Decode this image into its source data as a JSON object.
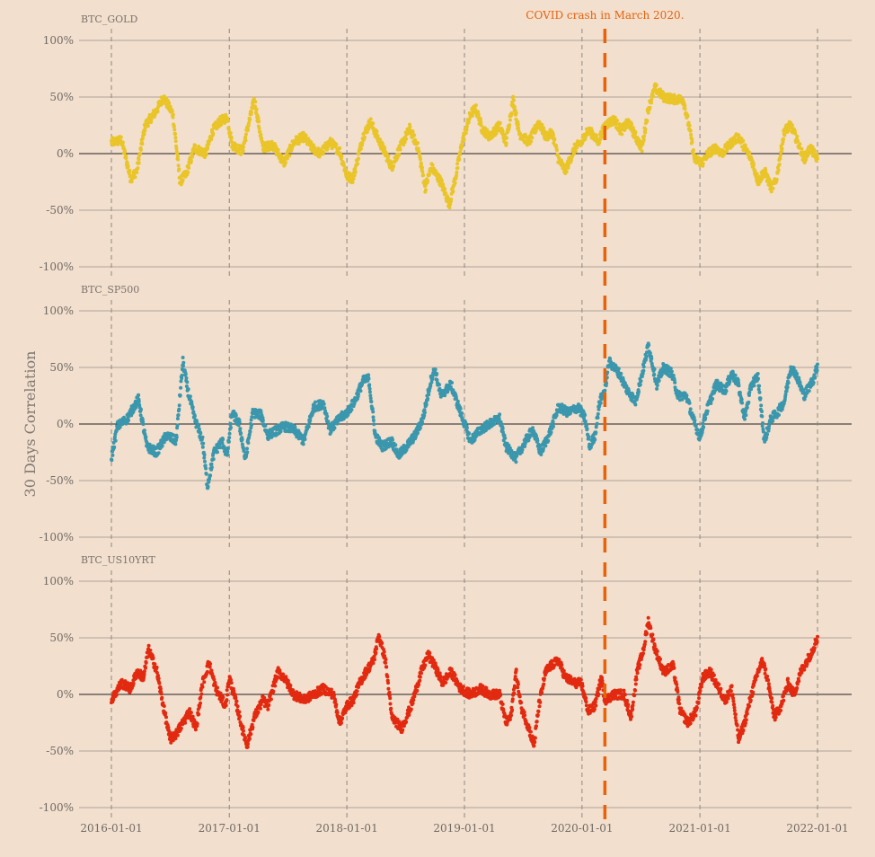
{
  "chart_data": {
    "type": "scatter",
    "ylabel": "30 Days Correlation",
    "yticks": [
      "100%",
      "50%",
      "0%",
      "-50%",
      "-100%"
    ],
    "ylim": [
      -100,
      100
    ],
    "x_range": [
      "2016-01-01",
      "2022-01-01"
    ],
    "xticks": [
      "2016-01-01",
      "2017-01-01",
      "2018-01-01",
      "2019-01-01",
      "2020-01-01",
      "2021-01-01",
      "2022-01-01"
    ],
    "grid": true,
    "annotation": {
      "text": "COVID crash in March 2020.",
      "date": "2020-03-12",
      "color": "#e8620c"
    },
    "panels": [
      {
        "title": "BTC_GOLD",
        "color": "#e9c52a",
        "anchors": [
          [
            "2016-01-01",
            10
          ],
          [
            "2016-02-01",
            12
          ],
          [
            "2016-03-01",
            -22
          ],
          [
            "2016-03-20",
            -15
          ],
          [
            "2016-04-15",
            25
          ],
          [
            "2016-05-20",
            38
          ],
          [
            "2016-06-10",
            50
          ],
          [
            "2016-07-10",
            35
          ],
          [
            "2016-08-01",
            -25
          ],
          [
            "2016-08-20",
            -18
          ],
          [
            "2016-09-15",
            5
          ],
          [
            "2016-10-20",
            0
          ],
          [
            "2016-11-10",
            20
          ],
          [
            "2016-12-01",
            28
          ],
          [
            "2016-12-25",
            32
          ],
          [
            "2017-01-10",
            8
          ],
          [
            "2017-02-10",
            2
          ],
          [
            "2017-03-01",
            25
          ],
          [
            "2017-03-20",
            48
          ],
          [
            "2017-04-15",
            5
          ],
          [
            "2017-05-15",
            8
          ],
          [
            "2017-06-20",
            -8
          ],
          [
            "2017-07-20",
            10
          ],
          [
            "2017-08-20",
            15
          ],
          [
            "2017-09-15",
            5
          ],
          [
            "2017-10-10",
            0
          ],
          [
            "2017-11-10",
            10
          ],
          [
            "2017-12-10",
            2
          ],
          [
            "2018-01-01",
            -20
          ],
          [
            "2018-01-20",
            -22
          ],
          [
            "2018-02-20",
            15
          ],
          [
            "2018-03-15",
            28
          ],
          [
            "2018-04-10",
            12
          ],
          [
            "2018-05-01",
            0
          ],
          [
            "2018-05-20",
            -12
          ],
          [
            "2018-06-15",
            5
          ],
          [
            "2018-07-15",
            22
          ],
          [
            "2018-08-10",
            5
          ],
          [
            "2018-09-01",
            -30
          ],
          [
            "2018-09-20",
            -12
          ],
          [
            "2018-10-20",
            -25
          ],
          [
            "2018-11-15",
            -45
          ],
          [
            "2018-12-05",
            -20
          ],
          [
            "2018-12-25",
            10
          ],
          [
            "2019-01-20",
            35
          ],
          [
            "2019-02-05",
            40
          ],
          [
            "2019-02-25",
            22
          ],
          [
            "2019-03-20",
            15
          ],
          [
            "2019-04-20",
            25
          ],
          [
            "2019-05-10",
            10
          ],
          [
            "2019-06-01",
            48
          ],
          [
            "2019-06-20",
            18
          ],
          [
            "2019-07-20",
            10
          ],
          [
            "2019-08-20",
            28
          ],
          [
            "2019-09-10",
            15
          ],
          [
            "2019-10-01",
            18
          ],
          [
            "2019-10-20",
            -5
          ],
          [
            "2019-11-10",
            -15
          ],
          [
            "2019-12-10",
            5
          ],
          [
            "2020-01-01",
            10
          ],
          [
            "2020-01-15",
            20
          ],
          [
            "2020-02-01",
            18
          ],
          [
            "2020-02-20",
            10
          ],
          [
            "2020-03-12",
            25
          ],
          [
            "2020-04-10",
            30
          ],
          [
            "2020-05-01",
            20
          ],
          [
            "2020-05-25",
            28
          ],
          [
            "2020-06-15",
            15
          ],
          [
            "2020-07-05",
            5
          ],
          [
            "2020-07-25",
            40
          ],
          [
            "2020-08-15",
            58
          ],
          [
            "2020-09-10",
            50
          ],
          [
            "2020-10-10",
            48
          ],
          [
            "2020-11-10",
            48
          ],
          [
            "2020-12-01",
            20
          ],
          [
            "2020-12-15",
            -5
          ],
          [
            "2021-01-10",
            -8
          ],
          [
            "2021-01-25",
            0
          ],
          [
            "2021-02-20",
            5
          ],
          [
            "2021-03-10",
            0
          ],
          [
            "2021-04-10",
            10
          ],
          [
            "2021-05-01",
            15
          ],
          [
            "2021-05-20",
            5
          ],
          [
            "2021-06-10",
            -5
          ],
          [
            "2021-07-01",
            -25
          ],
          [
            "2021-07-20",
            -15
          ],
          [
            "2021-08-10",
            -30
          ],
          [
            "2021-08-25",
            -25
          ],
          [
            "2021-09-20",
            20
          ],
          [
            "2021-10-10",
            25
          ],
          [
            "2021-11-01",
            10
          ],
          [
            "2021-11-20",
            -5
          ],
          [
            "2021-12-10",
            5
          ],
          [
            "2022-01-01",
            -5
          ]
        ]
      },
      {
        "title": "BTC_SP500",
        "color": "#3b97ad",
        "anchors": [
          [
            "2016-01-01",
            -30
          ],
          [
            "2016-01-20",
            -2
          ],
          [
            "2016-02-20",
            5
          ],
          [
            "2016-03-10",
            15
          ],
          [
            "2016-03-25",
            22
          ],
          [
            "2016-04-20",
            -20
          ],
          [
            "2016-05-20",
            -25
          ],
          [
            "2016-06-20",
            -10
          ],
          [
            "2016-07-20",
            -15
          ],
          [
            "2016-08-10",
            55
          ],
          [
            "2016-08-25",
            30
          ],
          [
            "2016-09-15",
            5
          ],
          [
            "2016-10-10",
            -15
          ],
          [
            "2016-10-25",
            -55
          ],
          [
            "2016-11-15",
            -25
          ],
          [
            "2016-12-10",
            -15
          ],
          [
            "2016-12-25",
            -28
          ],
          [
            "2017-01-10",
            10
          ],
          [
            "2017-02-01",
            0
          ],
          [
            "2017-02-20",
            -32
          ],
          [
            "2017-03-15",
            10
          ],
          [
            "2017-04-10",
            8
          ],
          [
            "2017-04-30",
            -10
          ],
          [
            "2017-06-20",
            -2
          ],
          [
            "2017-07-20",
            -5
          ],
          [
            "2017-08-20",
            -15
          ],
          [
            "2017-09-20",
            15
          ],
          [
            "2017-10-20",
            18
          ],
          [
            "2017-11-10",
            -5
          ],
          [
            "2017-12-10",
            5
          ],
          [
            "2018-01-01",
            10
          ],
          [
            "2018-01-25",
            20
          ],
          [
            "2018-02-20",
            38
          ],
          [
            "2018-03-10",
            40
          ],
          [
            "2018-03-30",
            -10
          ],
          [
            "2018-04-20",
            -20
          ],
          [
            "2018-05-20",
            -15
          ],
          [
            "2018-06-10",
            -28
          ],
          [
            "2018-07-05",
            -20
          ],
          [
            "2018-08-01",
            -10
          ],
          [
            "2018-08-25",
            5
          ],
          [
            "2018-09-20",
            40
          ],
          [
            "2018-10-01",
            48
          ],
          [
            "2018-10-20",
            25
          ],
          [
            "2018-11-20",
            35
          ],
          [
            "2018-12-20",
            10
          ],
          [
            "2019-01-20",
            -15
          ],
          [
            "2019-02-20",
            -5
          ],
          [
            "2019-03-20",
            0
          ],
          [
            "2019-04-20",
            5
          ],
          [
            "2019-05-10",
            -20
          ],
          [
            "2019-06-10",
            -30
          ],
          [
            "2019-07-10",
            -15
          ],
          [
            "2019-08-01",
            -5
          ],
          [
            "2019-08-25",
            -25
          ],
          [
            "2019-09-20",
            -10
          ],
          [
            "2019-10-20",
            15
          ],
          [
            "2019-11-20",
            10
          ],
          [
            "2019-12-20",
            15
          ],
          [
            "2020-01-10",
            5
          ],
          [
            "2020-01-25",
            -20
          ],
          [
            "2020-02-10",
            -10
          ],
          [
            "2020-02-25",
            20
          ],
          [
            "2020-03-12",
            30
          ],
          [
            "2020-03-25",
            55
          ],
          [
            "2020-04-25",
            45
          ],
          [
            "2020-05-20",
            30
          ],
          [
            "2020-06-15",
            20
          ],
          [
            "2020-07-10",
            50
          ],
          [
            "2020-07-25",
            70
          ],
          [
            "2020-08-20",
            35
          ],
          [
            "2020-09-10",
            50
          ],
          [
            "2020-10-05",
            45
          ],
          [
            "2020-10-25",
            25
          ],
          [
            "2020-11-20",
            25
          ],
          [
            "2020-12-10",
            5
          ],
          [
            "2021-01-01",
            -12
          ],
          [
            "2021-01-20",
            10
          ],
          [
            "2021-02-20",
            35
          ],
          [
            "2021-03-20",
            30
          ],
          [
            "2021-04-10",
            45
          ],
          [
            "2021-04-30",
            35
          ],
          [
            "2021-05-20",
            5
          ],
          [
            "2021-06-10",
            35
          ],
          [
            "2021-06-30",
            42
          ],
          [
            "2021-07-20",
            -15
          ],
          [
            "2021-08-10",
            5
          ],
          [
            "2021-08-30",
            10
          ],
          [
            "2021-09-20",
            20
          ],
          [
            "2021-10-10",
            50
          ],
          [
            "2021-10-25",
            45
          ],
          [
            "2021-11-20",
            25
          ],
          [
            "2021-12-20",
            40
          ],
          [
            "2022-01-01",
            52
          ]
        ]
      },
      {
        "title": "BTC_US10YRT",
        "color": "#e22a10",
        "anchors": [
          [
            "2016-01-01",
            -5
          ],
          [
            "2016-02-01",
            10
          ],
          [
            "2016-03-01",
            5
          ],
          [
            "2016-03-20",
            20
          ],
          [
            "2016-04-10",
            15
          ],
          [
            "2016-04-25",
            40
          ],
          [
            "2016-05-20",
            22
          ],
          [
            "2016-06-10",
            -10
          ],
          [
            "2016-07-01",
            -40
          ],
          [
            "2016-07-20",
            -35
          ],
          [
            "2016-08-10",
            -25
          ],
          [
            "2016-08-30",
            -15
          ],
          [
            "2016-09-20",
            -30
          ],
          [
            "2016-10-10",
            10
          ],
          [
            "2016-10-30",
            28
          ],
          [
            "2016-11-20",
            5
          ],
          [
            "2016-12-20",
            -10
          ],
          [
            "2017-01-01",
            15
          ],
          [
            "2017-01-20",
            -5
          ],
          [
            "2017-02-10",
            -30
          ],
          [
            "2017-02-25",
            -45
          ],
          [
            "2017-03-20",
            -20
          ],
          [
            "2017-04-15",
            -5
          ],
          [
            "2017-05-01",
            -10
          ],
          [
            "2017-06-01",
            20
          ],
          [
            "2017-06-20",
            15
          ],
          [
            "2017-07-20",
            0
          ],
          [
            "2017-08-20",
            -5
          ],
          [
            "2017-09-20",
            0
          ],
          [
            "2017-10-20",
            5
          ],
          [
            "2017-11-20",
            0
          ],
          [
            "2017-12-10",
            -25
          ],
          [
            "2018-01-01",
            -10
          ],
          [
            "2018-01-20",
            -5
          ],
          [
            "2018-02-10",
            10
          ],
          [
            "2018-03-01",
            20
          ],
          [
            "2018-03-25",
            30
          ],
          [
            "2018-04-10",
            52
          ],
          [
            "2018-05-01",
            30
          ],
          [
            "2018-05-20",
            -20
          ],
          [
            "2018-06-20",
            -30
          ],
          [
            "2018-07-20",
            -10
          ],
          [
            "2018-08-20",
            20
          ],
          [
            "2018-09-10",
            35
          ],
          [
            "2018-10-01",
            25
          ],
          [
            "2018-10-25",
            10
          ],
          [
            "2018-11-20",
            20
          ],
          [
            "2018-12-20",
            5
          ],
          [
            "2019-01-20",
            0
          ],
          [
            "2019-02-20",
            5
          ],
          [
            "2019-03-20",
            0
          ],
          [
            "2019-04-20",
            0
          ],
          [
            "2019-05-10",
            -25
          ],
          [
            "2019-05-25",
            -20
          ],
          [
            "2019-06-10",
            20
          ],
          [
            "2019-06-25",
            -10
          ],
          [
            "2019-07-20",
            -30
          ],
          [
            "2019-08-05",
            -45
          ],
          [
            "2019-08-20",
            -10
          ],
          [
            "2019-09-10",
            20
          ],
          [
            "2019-09-25",
            25
          ],
          [
            "2019-10-20",
            30
          ],
          [
            "2019-11-10",
            15
          ],
          [
            "2019-12-10",
            10
          ],
          [
            "2019-12-30",
            10
          ],
          [
            "2020-01-20",
            -15
          ],
          [
            "2020-02-10",
            -10
          ],
          [
            "2020-03-01",
            15
          ],
          [
            "2020-03-12",
            -5
          ],
          [
            "2020-04-10",
            0
          ],
          [
            "2020-05-10",
            0
          ],
          [
            "2020-06-01",
            -20
          ],
          [
            "2020-06-20",
            20
          ],
          [
            "2020-07-10",
            40
          ],
          [
            "2020-07-25",
            65
          ],
          [
            "2020-08-15",
            40
          ],
          [
            "2020-09-10",
            20
          ],
          [
            "2020-10-10",
            25
          ],
          [
            "2020-11-01",
            -15
          ],
          [
            "2020-11-25",
            -25
          ],
          [
            "2020-12-20",
            -15
          ],
          [
            "2021-01-10",
            15
          ],
          [
            "2021-02-01",
            20
          ],
          [
            "2021-02-20",
            10
          ],
          [
            "2021-03-20",
            -5
          ],
          [
            "2021-04-10",
            5
          ],
          [
            "2021-05-01",
            -40
          ],
          [
            "2021-05-20",
            -25
          ],
          [
            "2021-06-10",
            0
          ],
          [
            "2021-06-30",
            20
          ],
          [
            "2021-07-15",
            30
          ],
          [
            "2021-08-01",
            10
          ],
          [
            "2021-08-20",
            -20
          ],
          [
            "2021-09-10",
            -10
          ],
          [
            "2021-10-01",
            10
          ],
          [
            "2021-10-20",
            0
          ],
          [
            "2021-11-10",
            20
          ],
          [
            "2021-12-10",
            35
          ],
          [
            "2022-01-01",
            50
          ]
        ]
      }
    ]
  }
}
